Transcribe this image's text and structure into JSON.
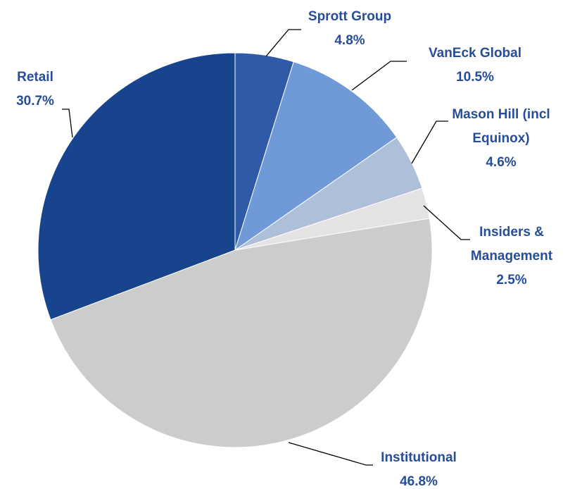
{
  "chart_data": {
    "type": "pie",
    "categories": [
      "Sprott Group",
      "VanEck Global",
      "Mason Hill (incl Equinox)",
      "Insiders & Management",
      "Institutional",
      "Retail"
    ],
    "values": [
      4.8,
      10.5,
      4.6,
      2.5,
      46.8,
      30.7
    ],
    "value_labels": [
      "4.8%",
      "10.5%",
      "4.6%",
      "2.5%",
      "46.8%",
      "30.7%"
    ],
    "colors": [
      "#2e5aa8",
      "#7099d8",
      "#adbfd9",
      "#e3e3e3",
      "#cccccc",
      "#17448c"
    ]
  }
}
